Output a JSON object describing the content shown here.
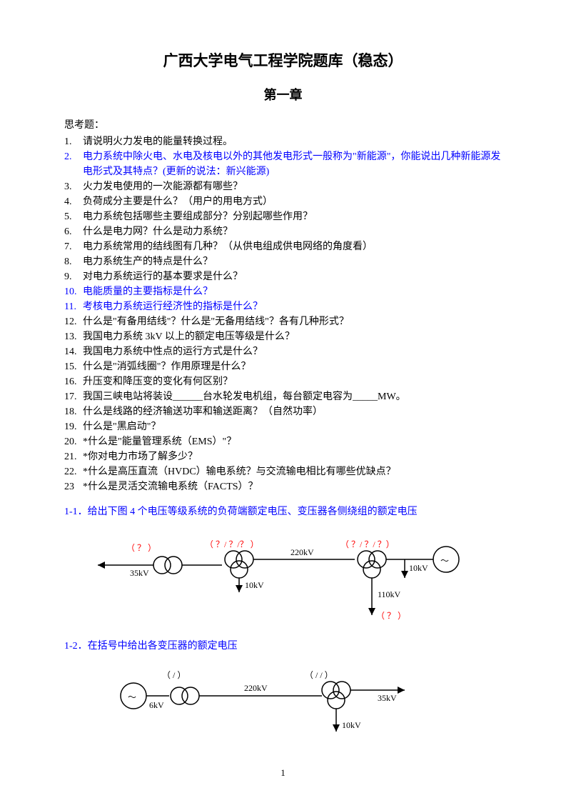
{
  "title": "广西大学电气工程学院题库（稳态）",
  "chapter": "第一章",
  "section_head": "思考题：",
  "questions": [
    {
      "n": "1.",
      "t": "请说明火力发电的能量转换过程。",
      "blue": false
    },
    {
      "n": "2.",
      "t": "电力系统中除火电、水电及核电以外的其他发电形式一般称为\"新能源\"，你能说出几种新能源发电形式及其特点？(更新的说法：新兴能源)",
      "blue": true
    },
    {
      "n": "3.",
      "t": "火力发电使用的一次能源都有哪些？",
      "blue": false
    },
    {
      "n": "4.",
      "t": "负荷成分主要是什么？（用户的用电方式）",
      "blue": false
    },
    {
      "n": "5.",
      "t": "电力系统包括哪些主要组成部分？分别起哪些作用？",
      "blue": false
    },
    {
      "n": "6.",
      "t": "什么是电力网？什么是动力系统？",
      "blue": false
    },
    {
      "n": "7.",
      "t": "电力系统常用的结线图有几种？（从供电组成供电网络的角度看）",
      "blue": false
    },
    {
      "n": "8.",
      "t": "电力系统生产的特点是什么？",
      "blue": false
    },
    {
      "n": "9.",
      "t": "对电力系统运行的基本要求是什么？",
      "blue": false
    },
    {
      "n": "10.",
      "t": "电能质量的主要指标是什么？",
      "blue": true
    },
    {
      "n": "11.",
      "t": "考核电力系统运行经济性的指标是什么？",
      "blue": true
    },
    {
      "n": "12.",
      "t": "什么是\"有备用结线\"？什么是\"无备用结线\"？各有几种形式？",
      "blue": false
    },
    {
      "n": "13.",
      "t": "我国电力系统 3kV 以上的额定电压等级是什么？",
      "blue": false
    },
    {
      "n": "14.",
      "t": "我国电力系统中性点的运行方式是什么？",
      "blue": false
    },
    {
      "n": "15.",
      "t": "什么是\"消弧线圈\"？作用原理是什么？",
      "blue": false
    },
    {
      "n": "16.",
      "t": "升压变和降压变的变化有何区别？",
      "blue": false
    },
    {
      "n": "17.",
      "t": "我国三峡电站将装设______台水轮发电机组，每台额定电容为_____MW。",
      "blue": false
    },
    {
      "n": "18.",
      "t": "什么是线路的经济输送功率和输送距离？（自然功率）",
      "blue": false
    },
    {
      "n": "19.",
      "t": "什么是\"黑启动\"？",
      "blue": false
    },
    {
      "n": "20.",
      "t": "*什么是\"能量管理系统（EMS）\"？",
      "blue": false
    },
    {
      "n": "21.",
      "t": "*你对电力市场了解多少？",
      "blue": false
    },
    {
      "n": "22.",
      "t": "*什么是高压直流（HVDC）输电系统？与交流输电相比有哪些优缺点？",
      "blue": false
    },
    {
      "n": "23",
      "t": " *什么是灵活交流输电系统（FACTS）？",
      "blue": false
    }
  ],
  "problem1": "1-1．给出下图 4 个电压等级系统的负荷端额定电压、变压器各侧绕组的额定电压",
  "problem2": "1-2．在括号中给出各变压器的额定电压",
  "diagram1": {
    "labels": {
      "q1": "（ ？ ）",
      "q2": "（  ？/   ？/？ ）",
      "q3": "（  ？/   ？/  ？）",
      "v1": "35kV",
      "v2": "10kV",
      "v3": "220kV",
      "v4": "10kV",
      "v5": "110kV",
      "q4": "（  ？  ）",
      "gen": "～"
    },
    "colors": {
      "red": "#ff0000",
      "black": "#000000"
    }
  },
  "diagram2": {
    "labels": {
      "p1": "（   /    ）",
      "p2": "（    /    /    ）",
      "v1": "6kV",
      "v2": "220kV",
      "v3": "10kV",
      "v4": "35kV",
      "gen": "～"
    },
    "colors": {
      "black": "#000000"
    }
  },
  "page_number": "1"
}
